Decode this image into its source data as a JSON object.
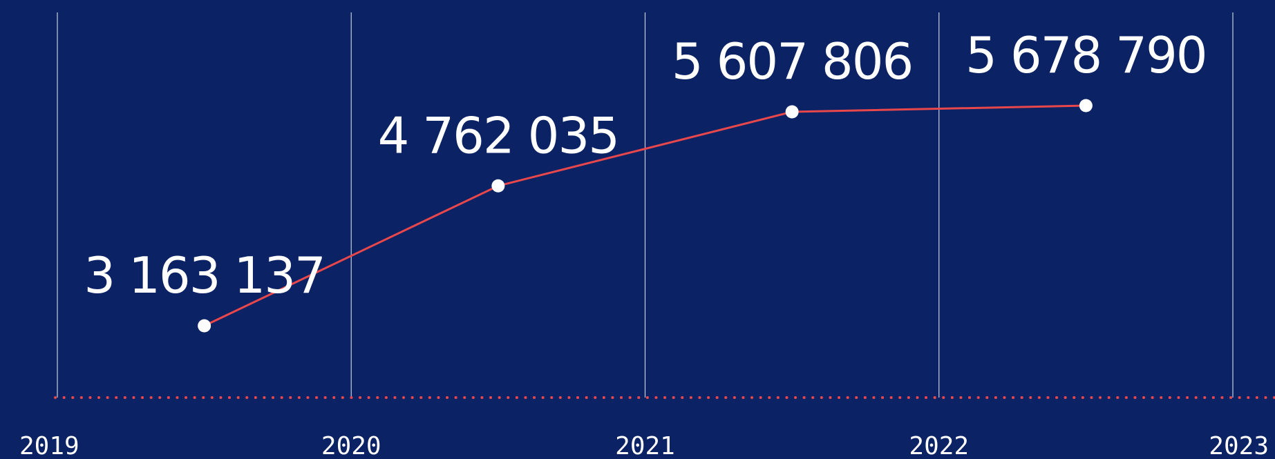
{
  "colors": {
    "background": "#0b2265",
    "line": "#e8474b",
    "gridline": "#c9cfe0",
    "point": "#ffffff",
    "text": "#ffffff"
  },
  "chart_data": {
    "type": "line",
    "title": "",
    "xlabel": "",
    "ylabel": "",
    "x_ticks": [
      "2019",
      "2020",
      "2021",
      "2022",
      "2023"
    ],
    "series": [
      {
        "points": [
          {
            "x": 2019.5,
            "y": 3163137,
            "label": "3 163 137"
          },
          {
            "x": 2020.5,
            "y": 4762035,
            "label": "4 762 035"
          },
          {
            "x": 2021.5,
            "y": 5607806,
            "label": "5 607 806"
          },
          {
            "x": 2022.5,
            "y": 5678790,
            "label": "5 678 790"
          }
        ]
      }
    ],
    "grid": true,
    "baseline_style": "dotted"
  }
}
